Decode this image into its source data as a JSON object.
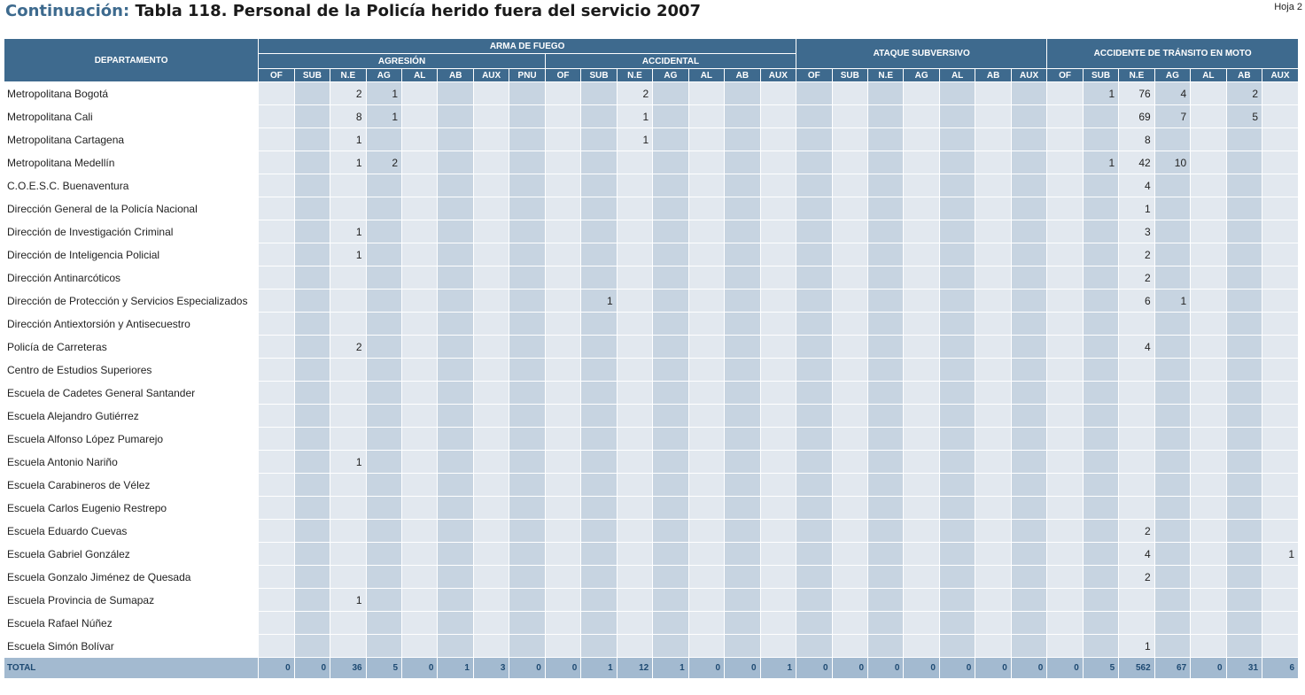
{
  "title": {
    "prefix": "Continuación:",
    "text": "Tabla 118.  Personal de la Policía herido fuera del servicio 2007"
  },
  "sheet": "Hoja 2",
  "headers": {
    "department": "DEPARTAMENTO",
    "arma_de_fuego": "ARMA DE FUEGO",
    "agresion": "AGRESIÓN",
    "accidental": "ACCIDENTAL",
    "ataque_subversivo": "ATAQUE SUBVERSIVO",
    "accidente_transito": "ACCIDENTE DE TRÁNSITO EN MOTO",
    "cols": [
      "OF",
      "SUB",
      "N.E",
      "AG",
      "AL",
      "AB",
      "AUX",
      "PNU",
      "OF",
      "SUB",
      "N.E",
      "AG",
      "AL",
      "AB",
      "AUX",
      "OF",
      "SUB",
      "N.E",
      "AG",
      "AL",
      "AB",
      "AUX",
      "OF",
      "SUB",
      "N.E",
      "AG",
      "AL",
      "AB",
      "AUX"
    ]
  },
  "rows": [
    {
      "name": "Metropolitana Bogotá",
      "v": [
        "",
        "",
        "2",
        "1",
        "",
        "",
        "",
        "",
        "",
        "",
        "2",
        "",
        "",
        "",
        "",
        "",
        "",
        "",
        "",
        "",
        "",
        "",
        "",
        "1",
        "76",
        "4",
        "",
        "2",
        ""
      ]
    },
    {
      "name": "Metropolitana Cali",
      "v": [
        "",
        "",
        "8",
        "1",
        "",
        "",
        "",
        "",
        "",
        "",
        "1",
        "",
        "",
        "",
        "",
        "",
        "",
        "",
        "",
        "",
        "",
        "",
        "",
        "",
        "69",
        "7",
        "",
        "5",
        ""
      ]
    },
    {
      "name": "Metropolitana Cartagena",
      "v": [
        "",
        "",
        "1",
        "",
        "",
        "",
        "",
        "",
        "",
        "",
        "1",
        "",
        "",
        "",
        "",
        "",
        "",
        "",
        "",
        "",
        "",
        "",
        "",
        "",
        "8",
        "",
        "",
        "",
        ""
      ]
    },
    {
      "name": "Metropolitana Medellín",
      "v": [
        "",
        "",
        "1",
        "2",
        "",
        "",
        "",
        "",
        "",
        "",
        "",
        "",
        "",
        "",
        "",
        "",
        "",
        "",
        "",
        "",
        "",
        "",
        "",
        "1",
        "42",
        "10",
        "",
        "",
        ""
      ]
    },
    {
      "name": "C.O.E.S.C. Buenaventura",
      "v": [
        "",
        "",
        "",
        "",
        "",
        "",
        "",
        "",
        "",
        "",
        "",
        "",
        "",
        "",
        "",
        "",
        "",
        "",
        "",
        "",
        "",
        "",
        "",
        "",
        "4",
        "",
        "",
        "",
        ""
      ]
    },
    {
      "name": "Dirección General de la Policía Nacional",
      "v": [
        "",
        "",
        "",
        "",
        "",
        "",
        "",
        "",
        "",
        "",
        "",
        "",
        "",
        "",
        "",
        "",
        "",
        "",
        "",
        "",
        "",
        "",
        "",
        "",
        "1",
        "",
        "",
        "",
        ""
      ]
    },
    {
      "name": "Dirección de Investigación Criminal",
      "v": [
        "",
        "",
        "1",
        "",
        "",
        "",
        "",
        "",
        "",
        "",
        "",
        "",
        "",
        "",
        "",
        "",
        "",
        "",
        "",
        "",
        "",
        "",
        "",
        "",
        "3",
        "",
        "",
        "",
        ""
      ]
    },
    {
      "name": "Dirección de Inteligencia Policial",
      "v": [
        "",
        "",
        "1",
        "",
        "",
        "",
        "",
        "",
        "",
        "",
        "",
        "",
        "",
        "",
        "",
        "",
        "",
        "",
        "",
        "",
        "",
        "",
        "",
        "",
        "2",
        "",
        "",
        "",
        ""
      ]
    },
    {
      "name": "Dirección Antinarcóticos",
      "v": [
        "",
        "",
        "",
        "",
        "",
        "",
        "",
        "",
        "",
        "",
        "",
        "",
        "",
        "",
        "",
        "",
        "",
        "",
        "",
        "",
        "",
        "",
        "",
        "",
        "2",
        "",
        "",
        "",
        ""
      ]
    },
    {
      "name": "Dirección de Protección y Servicios Especializados",
      "v": [
        "",
        "",
        "",
        "",
        "",
        "",
        "",
        "",
        "",
        "1",
        "",
        "",
        "",
        "",
        "",
        "",
        "",
        "",
        "",
        "",
        "",
        "",
        "",
        "",
        "6",
        "1",
        "",
        "",
        ""
      ]
    },
    {
      "name": "Dirección Antiextorsión y Antisecuestro",
      "v": [
        "",
        "",
        "",
        "",
        "",
        "",
        "",
        "",
        "",
        "",
        "",
        "",
        "",
        "",
        "",
        "",
        "",
        "",
        "",
        "",
        "",
        "",
        "",
        "",
        "",
        "",
        "",
        "",
        ""
      ]
    },
    {
      "name": "Policía de Carreteras",
      "v": [
        "",
        "",
        "2",
        "",
        "",
        "",
        "",
        "",
        "",
        "",
        "",
        "",
        "",
        "",
        "",
        "",
        "",
        "",
        "",
        "",
        "",
        "",
        "",
        "",
        "4",
        "",
        "",
        "",
        ""
      ]
    },
    {
      "name": "Centro de Estudios Superiores",
      "v": [
        "",
        "",
        "",
        "",
        "",
        "",
        "",
        "",
        "",
        "",
        "",
        "",
        "",
        "",
        "",
        "",
        "",
        "",
        "",
        "",
        "",
        "",
        "",
        "",
        "",
        "",
        "",
        "",
        ""
      ]
    },
    {
      "name": "Escuela de Cadetes General Santander",
      "v": [
        "",
        "",
        "",
        "",
        "",
        "",
        "",
        "",
        "",
        "",
        "",
        "",
        "",
        "",
        "",
        "",
        "",
        "",
        "",
        "",
        "",
        "",
        "",
        "",
        "",
        "",
        "",
        "",
        ""
      ]
    },
    {
      "name": "Escuela Alejandro Gutiérrez",
      "v": [
        "",
        "",
        "",
        "",
        "",
        "",
        "",
        "",
        "",
        "",
        "",
        "",
        "",
        "",
        "",
        "",
        "",
        "",
        "",
        "",
        "",
        "",
        "",
        "",
        "",
        "",
        "",
        "",
        ""
      ]
    },
    {
      "name": "Escuela Alfonso López Pumarejo",
      "v": [
        "",
        "",
        "",
        "",
        "",
        "",
        "",
        "",
        "",
        "",
        "",
        "",
        "",
        "",
        "",
        "",
        "",
        "",
        "",
        "",
        "",
        "",
        "",
        "",
        "",
        "",
        "",
        "",
        ""
      ]
    },
    {
      "name": "Escuela Antonio Nariño",
      "v": [
        "",
        "",
        "1",
        "",
        "",
        "",
        "",
        "",
        "",
        "",
        "",
        "",
        "",
        "",
        "",
        "",
        "",
        "",
        "",
        "",
        "",
        "",
        "",
        "",
        "",
        "",
        "",
        "",
        ""
      ]
    },
    {
      "name": "Escuela Carabineros de Vélez",
      "v": [
        "",
        "",
        "",
        "",
        "",
        "",
        "",
        "",
        "",
        "",
        "",
        "",
        "",
        "",
        "",
        "",
        "",
        "",
        "",
        "",
        "",
        "",
        "",
        "",
        "",
        "",
        "",
        "",
        ""
      ]
    },
    {
      "name": "Escuela Carlos Eugenio Restrepo",
      "v": [
        "",
        "",
        "",
        "",
        "",
        "",
        "",
        "",
        "",
        "",
        "",
        "",
        "",
        "",
        "",
        "",
        "",
        "",
        "",
        "",
        "",
        "",
        "",
        "",
        "",
        "",
        "",
        "",
        ""
      ]
    },
    {
      "name": "Escuela Eduardo Cuevas",
      "v": [
        "",
        "",
        "",
        "",
        "",
        "",
        "",
        "",
        "",
        "",
        "",
        "",
        "",
        "",
        "",
        "",
        "",
        "",
        "",
        "",
        "",
        "",
        "",
        "",
        "2",
        "",
        "",
        "",
        ""
      ]
    },
    {
      "name": "Escuela Gabriel González",
      "v": [
        "",
        "",
        "",
        "",
        "",
        "",
        "",
        "",
        "",
        "",
        "",
        "",
        "",
        "",
        "",
        "",
        "",
        "",
        "",
        "",
        "",
        "",
        "",
        "",
        "4",
        "",
        "",
        "",
        "1"
      ]
    },
    {
      "name": "Escuela Gonzalo Jiménez de Quesada",
      "v": [
        "",
        "",
        "",
        "",
        "",
        "",
        "",
        "",
        "",
        "",
        "",
        "",
        "",
        "",
        "",
        "",
        "",
        "",
        "",
        "",
        "",
        "",
        "",
        "",
        "2",
        "",
        "",
        "",
        ""
      ]
    },
    {
      "name": "Escuela Provincia de Sumapaz",
      "v": [
        "",
        "",
        "1",
        "",
        "",
        "",
        "",
        "",
        "",
        "",
        "",
        "",
        "",
        "",
        "",
        "",
        "",
        "",
        "",
        "",
        "",
        "",
        "",
        "",
        "",
        "",
        "",
        "",
        ""
      ]
    },
    {
      "name": "Escuela Rafael Núñez",
      "v": [
        "",
        "",
        "",
        "",
        "",
        "",
        "",
        "",
        "",
        "",
        "",
        "",
        "",
        "",
        "",
        "",
        "",
        "",
        "",
        "",
        "",
        "",
        "",
        "",
        "",
        "",
        "",
        "",
        ""
      ]
    },
    {
      "name": "Escuela Simón Bolívar",
      "v": [
        "",
        "",
        "",
        "",
        "",
        "",
        "",
        "",
        "",
        "",
        "",
        "",
        "",
        "",
        "",
        "",
        "",
        "",
        "",
        "",
        "",
        "",
        "",
        "",
        "1",
        "",
        "",
        "",
        ""
      ]
    }
  ],
  "total": {
    "name": "TOTAL",
    "v": [
      "0",
      "0",
      "36",
      "5",
      "0",
      "1",
      "3",
      "0",
      "0",
      "1",
      "12",
      "1",
      "0",
      "0",
      "1",
      "0",
      "0",
      "0",
      "0",
      "0",
      "0",
      "0",
      "0",
      "5",
      "562",
      "67",
      "0",
      "31",
      "6"
    ]
  }
}
